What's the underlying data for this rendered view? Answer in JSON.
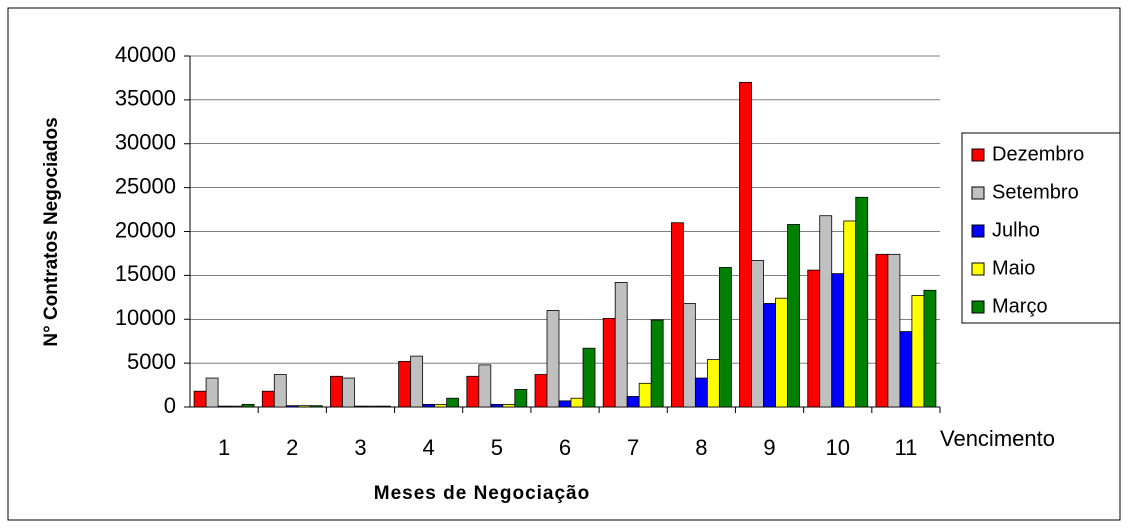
{
  "chart_data": {
    "type": "bar",
    "y_label": "N° Contratos Negociados",
    "x_label": "Meses de Negociação",
    "annotation": "Vencimento",
    "categories": [
      "1",
      "2",
      "3",
      "4",
      "5",
      "6",
      "7",
      "8",
      "9",
      "10",
      "11"
    ],
    "series": [
      {
        "name": "Dezembro",
        "color": "#ff0000",
        "values": [
          1800,
          1800,
          3500,
          5200,
          3500,
          3700,
          10100,
          21000,
          37000,
          15600,
          17400
        ]
      },
      {
        "name": "Setembro",
        "color": "#c0c0c0",
        "values": [
          3300,
          3700,
          3300,
          5800,
          4800,
          11000,
          14200,
          11800,
          16700,
          21800,
          17400
        ]
      },
      {
        "name": "Julho",
        "color": "#0000ff",
        "values": [
          100,
          150,
          100,
          300,
          300,
          700,
          1200,
          3300,
          11800,
          15200,
          8600
        ]
      },
      {
        "name": "Maio",
        "color": "#ffff00",
        "values": [
          100,
          150,
          100,
          300,
          300,
          1000,
          2700,
          5400,
          12400,
          21200,
          12700
        ]
      },
      {
        "name": "Março",
        "color": "#008000",
        "values": [
          300,
          150,
          100,
          1000,
          2000,
          6700,
          9900,
          15900,
          20800,
          23900,
          13300
        ]
      }
    ],
    "ylim": [
      0,
      40000
    ],
    "yticks": [
      0,
      5000,
      10000,
      15000,
      20000,
      25000,
      30000,
      35000,
      40000
    ],
    "grid": true,
    "legend": "right"
  }
}
